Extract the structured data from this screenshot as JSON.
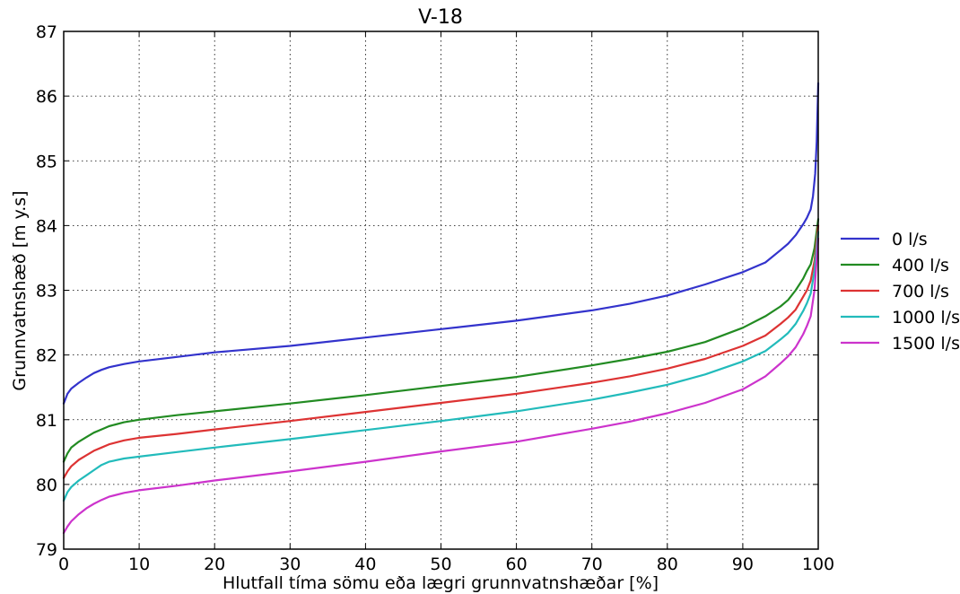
{
  "chart_data": {
    "type": "line",
    "title": "V-18",
    "xlabel": "Hlutfall tíma sömu eða lægri grunnvatnshæðar [%]",
    "ylabel": "Grunnvatnshæð [m y.s]",
    "xlim": [
      0,
      100
    ],
    "ylim": [
      79,
      87
    ],
    "xticks": [
      0,
      10,
      20,
      30,
      40,
      50,
      60,
      70,
      80,
      90,
      100
    ],
    "yticks": [
      79,
      80,
      81,
      82,
      83,
      84,
      85,
      86,
      87
    ],
    "grid": true,
    "legend_position": "outside-right",
    "series": [
      {
        "name": "0 l/s",
        "color": "#3333cc",
        "x": [
          0,
          0.5,
          1,
          2,
          3,
          4,
          5,
          6,
          8,
          10,
          15,
          20,
          30,
          40,
          50,
          60,
          70,
          75,
          80,
          85,
          90,
          93,
          95,
          96,
          97,
          98,
          98.5,
          99,
          99.3,
          99.6,
          99.8,
          100
        ],
        "y": [
          81.25,
          81.4,
          81.48,
          81.57,
          81.65,
          81.72,
          81.77,
          81.81,
          81.86,
          81.9,
          81.97,
          82.04,
          82.14,
          82.27,
          82.4,
          82.53,
          82.69,
          82.79,
          82.92,
          83.09,
          83.28,
          83.43,
          83.62,
          83.72,
          83.85,
          84.02,
          84.12,
          84.25,
          84.45,
          84.8,
          85.3,
          86.2
        ]
      },
      {
        "name": "400 l/s",
        "color": "#228b22",
        "x": [
          0,
          0.5,
          1,
          2,
          3,
          4,
          5,
          6,
          8,
          10,
          15,
          20,
          30,
          40,
          50,
          60,
          70,
          75,
          80,
          85,
          90,
          93,
          95,
          96,
          97,
          98,
          98.5,
          99,
          99.5,
          100
        ],
        "y": [
          80.35,
          80.48,
          80.57,
          80.66,
          80.73,
          80.8,
          80.85,
          80.9,
          80.96,
          81.0,
          81.07,
          81.13,
          81.25,
          81.38,
          81.52,
          81.66,
          81.84,
          81.94,
          82.05,
          82.2,
          82.42,
          82.6,
          82.75,
          82.85,
          83.0,
          83.18,
          83.3,
          83.4,
          83.65,
          84.1
        ]
      },
      {
        "name": "700 l/s",
        "color": "#dd3333",
        "x": [
          0,
          0.5,
          1,
          2,
          3,
          4,
          5,
          6,
          8,
          10,
          15,
          20,
          30,
          40,
          50,
          60,
          70,
          75,
          80,
          85,
          90,
          93,
          95,
          96,
          97,
          98,
          98.5,
          99,
          99.5,
          100
        ],
        "y": [
          80.1,
          80.2,
          80.28,
          80.38,
          80.45,
          80.52,
          80.57,
          80.62,
          80.68,
          80.72,
          80.78,
          80.85,
          80.98,
          81.12,
          81.26,
          81.4,
          81.57,
          81.67,
          81.79,
          81.94,
          82.14,
          82.3,
          82.48,
          82.58,
          82.7,
          82.9,
          83.0,
          83.15,
          83.45,
          84.0
        ]
      },
      {
        "name": "1000 l/s",
        "color": "#22bbbb",
        "x": [
          0,
          0.5,
          1,
          2,
          3,
          4,
          5,
          6,
          8,
          10,
          15,
          20,
          30,
          40,
          50,
          60,
          70,
          75,
          80,
          85,
          90,
          93,
          95,
          96,
          97,
          98,
          98.5,
          99,
          99.5,
          100
        ],
        "y": [
          79.75,
          79.88,
          79.96,
          80.06,
          80.14,
          80.22,
          80.3,
          80.35,
          80.4,
          80.43,
          80.5,
          80.57,
          80.7,
          80.84,
          80.98,
          81.13,
          81.31,
          81.42,
          81.54,
          81.7,
          81.9,
          82.06,
          82.24,
          82.34,
          82.48,
          82.68,
          82.8,
          82.95,
          83.3,
          83.9
        ]
      },
      {
        "name": "1500 l/s",
        "color": "#cc33cc",
        "x": [
          0,
          0.5,
          1,
          2,
          3,
          4,
          5,
          6,
          8,
          10,
          15,
          20,
          30,
          40,
          50,
          60,
          70,
          75,
          80,
          85,
          90,
          93,
          95,
          96,
          97,
          98,
          98.5,
          99,
          99.5,
          100
        ],
        "y": [
          79.25,
          79.35,
          79.43,
          79.54,
          79.63,
          79.7,
          79.76,
          79.81,
          79.87,
          79.91,
          79.98,
          80.06,
          80.2,
          80.35,
          80.51,
          80.66,
          80.86,
          80.97,
          81.1,
          81.26,
          81.47,
          81.67,
          81.87,
          81.98,
          82.12,
          82.32,
          82.45,
          82.6,
          83.0,
          83.8
        ]
      }
    ]
  }
}
